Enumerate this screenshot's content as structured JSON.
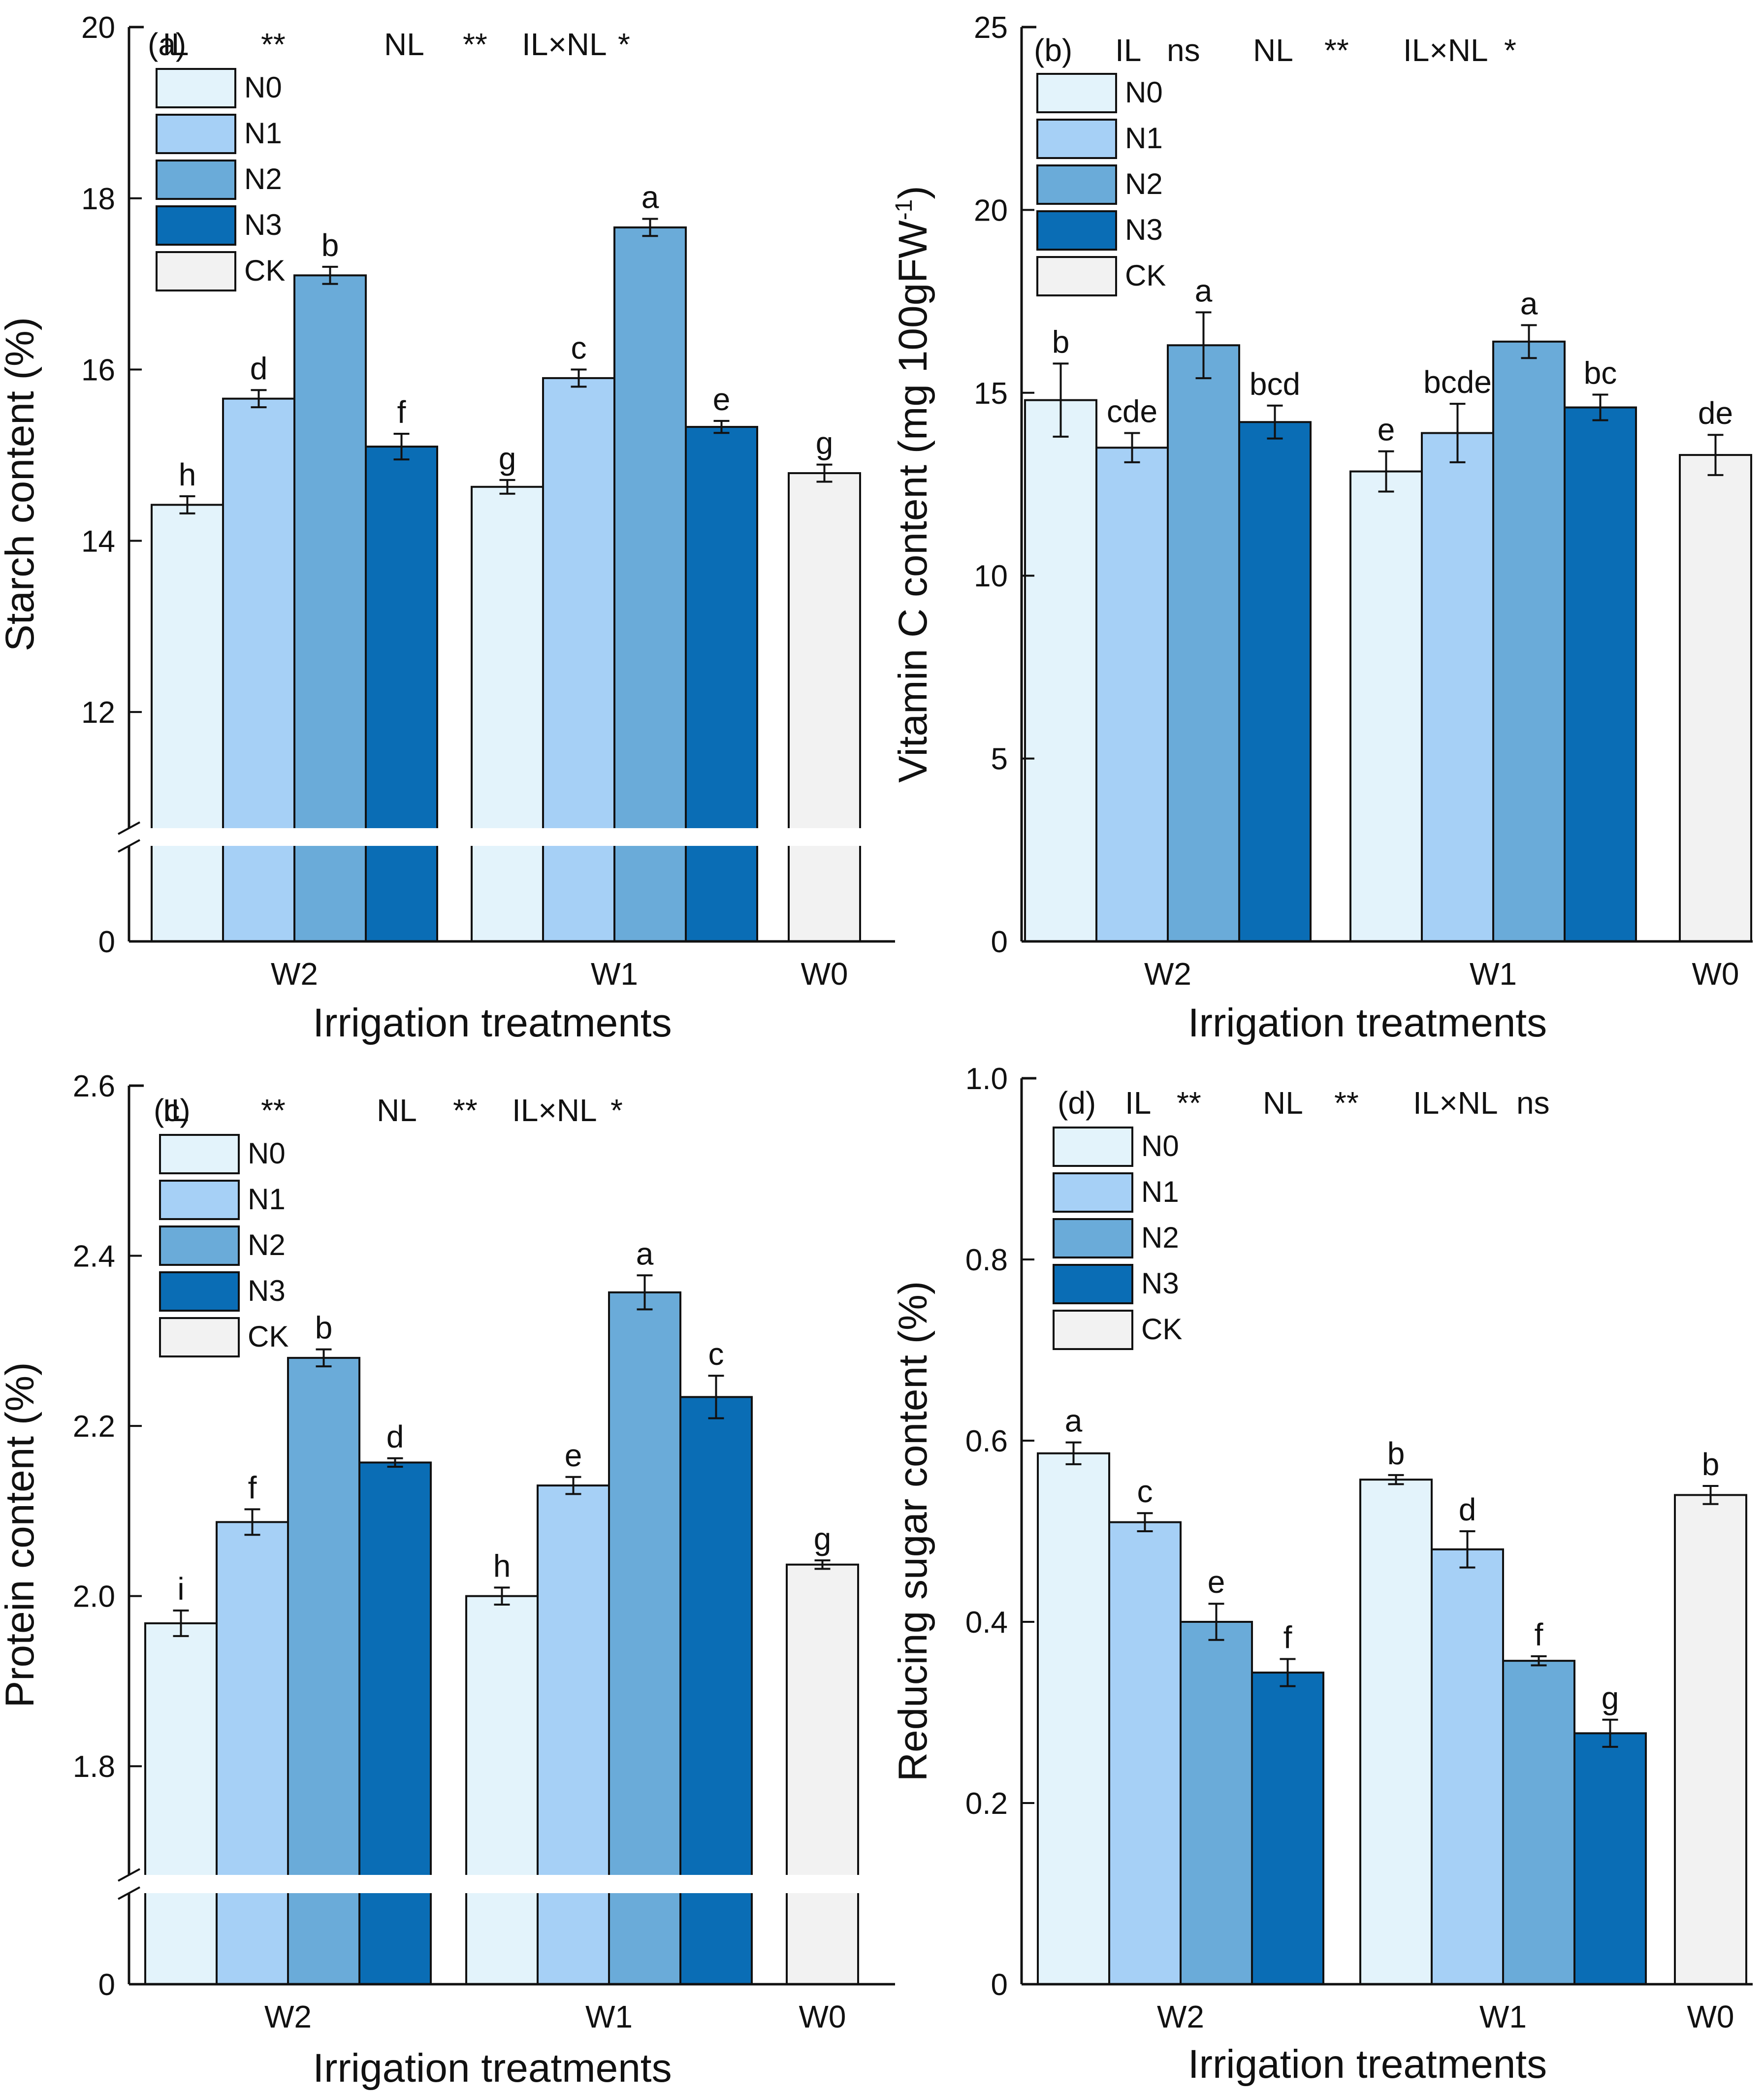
{
  "figure": {
    "colors": {
      "N0": "#e3f3fb",
      "N1": "#a6d0f6",
      "N2": "#6aabd9",
      "N3": "#0a6db5",
      "CK": "#f2f2f2",
      "axis": "#111111"
    },
    "legend": [
      "N0",
      "N1",
      "N2",
      "N3",
      "CK"
    ]
  },
  "chart_data": [
    {
      "id": "a",
      "type": "bar",
      "panel_label": "(a)",
      "stats": [
        {
          "label": "IL",
          "sig": "**"
        },
        {
          "label": "NL",
          "sig": "**"
        },
        {
          "label": "IL×NL",
          "sig": "*"
        }
      ],
      "ylabel": "Starch content (%)",
      "xlabel": "Irrigation treatments",
      "categories": [
        "W2",
        "W1",
        "W0"
      ],
      "ylim": [
        11,
        20
      ],
      "broken_axis": true,
      "yticks": [
        {
          "v": 12,
          "t": "12"
        },
        {
          "v": 14,
          "t": "14"
        },
        {
          "v": 16,
          "t": "16"
        },
        {
          "v": 18,
          "t": "18"
        },
        {
          "v": 20,
          "t": "20"
        }
      ],
      "zero_label": "0",
      "bars": [
        {
          "group": "W2",
          "series": "N0",
          "value": 14.42,
          "err": 0.1,
          "letter": "h"
        },
        {
          "group": "W2",
          "series": "N1",
          "value": 15.66,
          "err": 0.1,
          "letter": "d"
        },
        {
          "group": "W2",
          "series": "N2",
          "value": 17.1,
          "err": 0.1,
          "letter": "b"
        },
        {
          "group": "W2",
          "series": "N3",
          "value": 15.1,
          "err": 0.15,
          "letter": "f"
        },
        {
          "group": "W1",
          "series": "N0",
          "value": 14.63,
          "err": 0.08,
          "letter": "g"
        },
        {
          "group": "W1",
          "series": "N1",
          "value": 15.9,
          "err": 0.1,
          "letter": "c"
        },
        {
          "group": "W1",
          "series": "N2",
          "value": 17.66,
          "err": 0.1,
          "letter": "a"
        },
        {
          "group": "W1",
          "series": "N3",
          "value": 15.33,
          "err": 0.07,
          "letter": "e"
        },
        {
          "group": "W0",
          "series": "CK",
          "value": 14.79,
          "err": 0.1,
          "letter": "g"
        }
      ]
    },
    {
      "id": "b",
      "type": "bar",
      "panel_label": "(b)",
      "stats": [
        {
          "label": "IL",
          "sig": "ns"
        },
        {
          "label": "NL",
          "sig": "**"
        },
        {
          "label": "IL×NL",
          "sig": "*"
        }
      ],
      "ylabel_main": "Vitamin C content (mg 100gFW",
      "ylabel_sup": "-1",
      "ylabel_end": ")",
      "xlabel": "Irrigation treatments",
      "categories": [
        "W2",
        "W1",
        "W0"
      ],
      "ylim": [
        0,
        25
      ],
      "broken_axis": false,
      "yticks": [
        {
          "v": 0,
          "t": "0"
        },
        {
          "v": 5,
          "t": "5"
        },
        {
          "v": 10,
          "t": "10"
        },
        {
          "v": 15,
          "t": "15"
        },
        {
          "v": 20,
          "t": "20"
        },
        {
          "v": 25,
          "t": "25"
        }
      ],
      "bars": [
        {
          "group": "W2",
          "series": "N0",
          "value": 14.8,
          "err": 1.0,
          "letter": "b"
        },
        {
          "group": "W2",
          "series": "N1",
          "value": 13.5,
          "err": 0.4,
          "letter": "cde"
        },
        {
          "group": "W2",
          "series": "N2",
          "value": 16.3,
          "err": 0.9,
          "letter": "a"
        },
        {
          "group": "W2",
          "series": "N3",
          "value": 14.2,
          "err": 0.45,
          "letter": "bcd"
        },
        {
          "group": "W1",
          "series": "N0",
          "value": 12.85,
          "err": 0.55,
          "letter": "e"
        },
        {
          "group": "W1",
          "series": "N1",
          "value": 13.9,
          "err": 0.8,
          "letter": "bcde"
        },
        {
          "group": "W1",
          "series": "N2",
          "value": 16.4,
          "err": 0.45,
          "letter": "a"
        },
        {
          "group": "W1",
          "series": "N3",
          "value": 14.6,
          "err": 0.35,
          "letter": "bc"
        },
        {
          "group": "W0",
          "series": "CK",
          "value": 13.3,
          "err": 0.55,
          "letter": "de"
        }
      ]
    },
    {
      "id": "c",
      "type": "bar",
      "panel_label": "(c)",
      "stats": [
        {
          "label": "IL",
          "sig": "**"
        },
        {
          "label": "NL",
          "sig": "**"
        },
        {
          "label": "IL×NL",
          "sig": "*"
        }
      ],
      "ylabel": "Protein content (%)",
      "xlabel": "Irrigation treatments",
      "categories": [
        "W2",
        "W1",
        "W0"
      ],
      "ylim": [
        1.7,
        2.6
      ],
      "broken_axis": true,
      "yticks": [
        {
          "v": 1.8,
          "t": "1.8"
        },
        {
          "v": 2.0,
          "t": "2.0"
        },
        {
          "v": 2.2,
          "t": "2.2"
        },
        {
          "v": 2.4,
          "t": "2.4"
        },
        {
          "v": 2.6,
          "t": "2.6"
        }
      ],
      "zero_label": "0",
      "bars": [
        {
          "group": "W2",
          "series": "N0",
          "value": 1.968,
          "err": 0.015,
          "letter": "i"
        },
        {
          "group": "W2",
          "series": "N1",
          "value": 2.087,
          "err": 0.015,
          "letter": "f"
        },
        {
          "group": "W2",
          "series": "N2",
          "value": 2.28,
          "err": 0.01,
          "letter": "b"
        },
        {
          "group": "W2",
          "series": "N3",
          "value": 2.157,
          "err": 0.005,
          "letter": "d"
        },
        {
          "group": "W1",
          "series": "N0",
          "value": 2.0,
          "err": 0.01,
          "letter": "h"
        },
        {
          "group": "W1",
          "series": "N1",
          "value": 2.13,
          "err": 0.01,
          "letter": "e"
        },
        {
          "group": "W1",
          "series": "N2",
          "value": 2.357,
          "err": 0.02,
          "letter": "a"
        },
        {
          "group": "W1",
          "series": "N3",
          "value": 2.234,
          "err": 0.025,
          "letter": "c"
        },
        {
          "group": "W0",
          "series": "CK",
          "value": 2.037,
          "err": 0.005,
          "letter": "g"
        }
      ]
    },
    {
      "id": "d",
      "type": "bar",
      "panel_label": "(d)",
      "stats": [
        {
          "label": "IL",
          "sig": "**"
        },
        {
          "label": "NL",
          "sig": "**"
        },
        {
          "label": "IL×NL",
          "sig": "ns"
        }
      ],
      "ylabel": "Reducing sugar content (%)",
      "xlabel": "Irrigation treatments",
      "categories": [
        "W2",
        "W1",
        "W0"
      ],
      "ylim": [
        0,
        1.0
      ],
      "broken_axis": false,
      "yticks": [
        {
          "v": 0,
          "t": "0"
        },
        {
          "v": 0.2,
          "t": "0.2"
        },
        {
          "v": 0.4,
          "t": "0.4"
        },
        {
          "v": 0.6,
          "t": "0.6"
        },
        {
          "v": 0.8,
          "t": "0.8"
        },
        {
          "v": 1.0,
          "t": "1.0"
        }
      ],
      "bars": [
        {
          "group": "W2",
          "series": "N0",
          "value": 0.586,
          "err": 0.012,
          "letter": "a"
        },
        {
          "group": "W2",
          "series": "N1",
          "value": 0.51,
          "err": 0.01,
          "letter": "c"
        },
        {
          "group": "W2",
          "series": "N2",
          "value": 0.4,
          "err": 0.02,
          "letter": "e"
        },
        {
          "group": "W2",
          "series": "N3",
          "value": 0.344,
          "err": 0.015,
          "letter": "f"
        },
        {
          "group": "W1",
          "series": "N0",
          "value": 0.557,
          "err": 0.005,
          "letter": "b"
        },
        {
          "group": "W1",
          "series": "N1",
          "value": 0.48,
          "err": 0.02,
          "letter": "d"
        },
        {
          "group": "W1",
          "series": "N2",
          "value": 0.357,
          "err": 0.005,
          "letter": "f"
        },
        {
          "group": "W1",
          "series": "N3",
          "value": 0.277,
          "err": 0.015,
          "letter": "g"
        },
        {
          "group": "W0",
          "series": "CK",
          "value": 0.54,
          "err": 0.01,
          "letter": "b"
        }
      ]
    }
  ]
}
